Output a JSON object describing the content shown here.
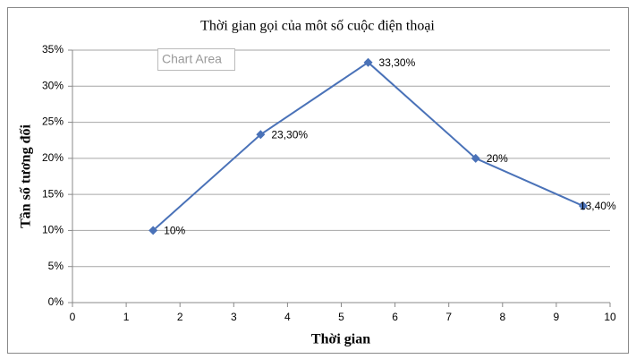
{
  "chart_data": {
    "type": "line",
    "title": "Thời gian gọi của môt số cuộc điện thoại",
    "xlabel": "Thời gian",
    "ylabel": "Tần số tương đối",
    "tooltip": "Chart Area",
    "x": [
      1.5,
      3.5,
      5.5,
      7.5,
      9.5
    ],
    "series": [
      {
        "color": "#4a72b8",
        "values": [
          10,
          23.3,
          33.3,
          20,
          13.4
        ],
        "value_labels": [
          "10%",
          "23,30%",
          "33,30%",
          "20%",
          "13,40%"
        ]
      }
    ],
    "xlim": [
      0,
      10
    ],
    "xticks": [
      0,
      1,
      2,
      3,
      4,
      5,
      6,
      7,
      8,
      9,
      10
    ],
    "ylim": [
      0,
      35
    ],
    "yticks": [
      {
        "value": 0,
        "label": "0%"
      },
      {
        "value": 5,
        "label": "5%"
      },
      {
        "value": 10,
        "label": "10%"
      },
      {
        "value": 15,
        "label": "15%"
      },
      {
        "value": 20,
        "label": "20%"
      },
      {
        "value": 25,
        "label": "25%"
      },
      {
        "value": 30,
        "label": "30%"
      },
      {
        "value": 35,
        "label": "35%"
      }
    ],
    "grid": true
  }
}
